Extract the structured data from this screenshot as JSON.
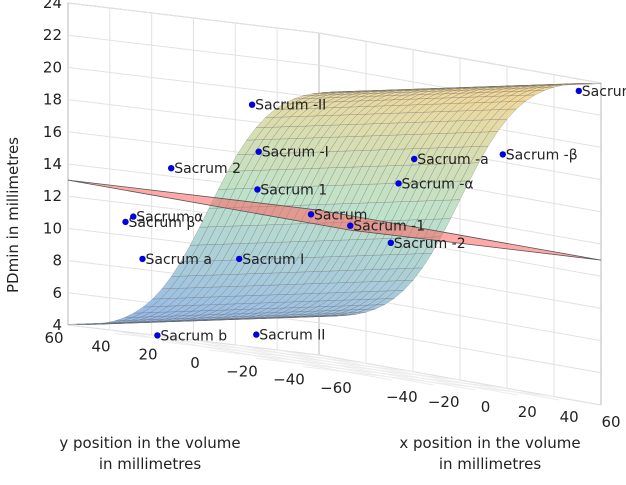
{
  "chart_data": {
    "type": "surface3d",
    "title": "",
    "xlabel": [
      "x position in the volume",
      "in millimetres"
    ],
    "ylabel": [
      "y position in the volume",
      "in millimetres"
    ],
    "zlabel": "PDmin in millimetres",
    "xlim": [
      -60,
      60
    ],
    "ylim": [
      -60,
      60
    ],
    "zlim": [
      4,
      24
    ],
    "x_ticks": [
      "−40",
      "−20",
      "0",
      "20",
      "40",
      "60"
    ],
    "y_ticks": [
      "60",
      "40",
      "20",
      "0",
      "−20",
      "−40",
      "−60"
    ],
    "z_ticks": [
      "4",
      "6",
      "8",
      "10",
      "12",
      "14",
      "16",
      "18",
      "20",
      "22",
      "24"
    ],
    "grid": true,
    "plane_z": 13,
    "surface": {
      "description_of_shape": "sigmoid step in y direction, from about 5 at y=+60 to about 23 at y=-60",
      "z_min": 5,
      "z_max": 23
    },
    "points": [
      {
        "label": "Sacrum -b",
        "z": 23.3
      },
      {
        "label": "Sacrum -II",
        "z": 19.6
      },
      {
        "label": "Sacrum -β",
        "z": 18.5
      },
      {
        "label": "Sacrum -a",
        "z": 17.6
      },
      {
        "label": "Sacrum -I",
        "z": 16.6
      },
      {
        "label": "Sacrum -α",
        "z": 15.8
      },
      {
        "label": "Sacrum 2",
        "z": 14.8
      },
      {
        "label": "Sacrum 1",
        "z": 14.2
      },
      {
        "label": "Sacrum",
        "z": 13.1
      },
      {
        "label": "Sacrum -1",
        "z": 12.6
      },
      {
        "label": "Sacrum -2",
        "z": 11.8
      },
      {
        "label": "Sacrum β",
        "z": 11.0
      },
      {
        "label": "Sacrum α",
        "z": 11.3
      },
      {
        "label": "Sacrum I",
        "z": 9.5
      },
      {
        "label": "Sacrum a",
        "z": 8.7
      },
      {
        "label": "Sacrum II",
        "z": 4.8
      },
      {
        "label": "Sacrum b",
        "z": 4.0
      }
    ],
    "colors": {
      "plane": "#ff6060",
      "point": "#0000e0",
      "surface_low": "#8ab4e8",
      "surface_mid": "#bde0c0",
      "surface_high": "#f4d58e"
    }
  }
}
